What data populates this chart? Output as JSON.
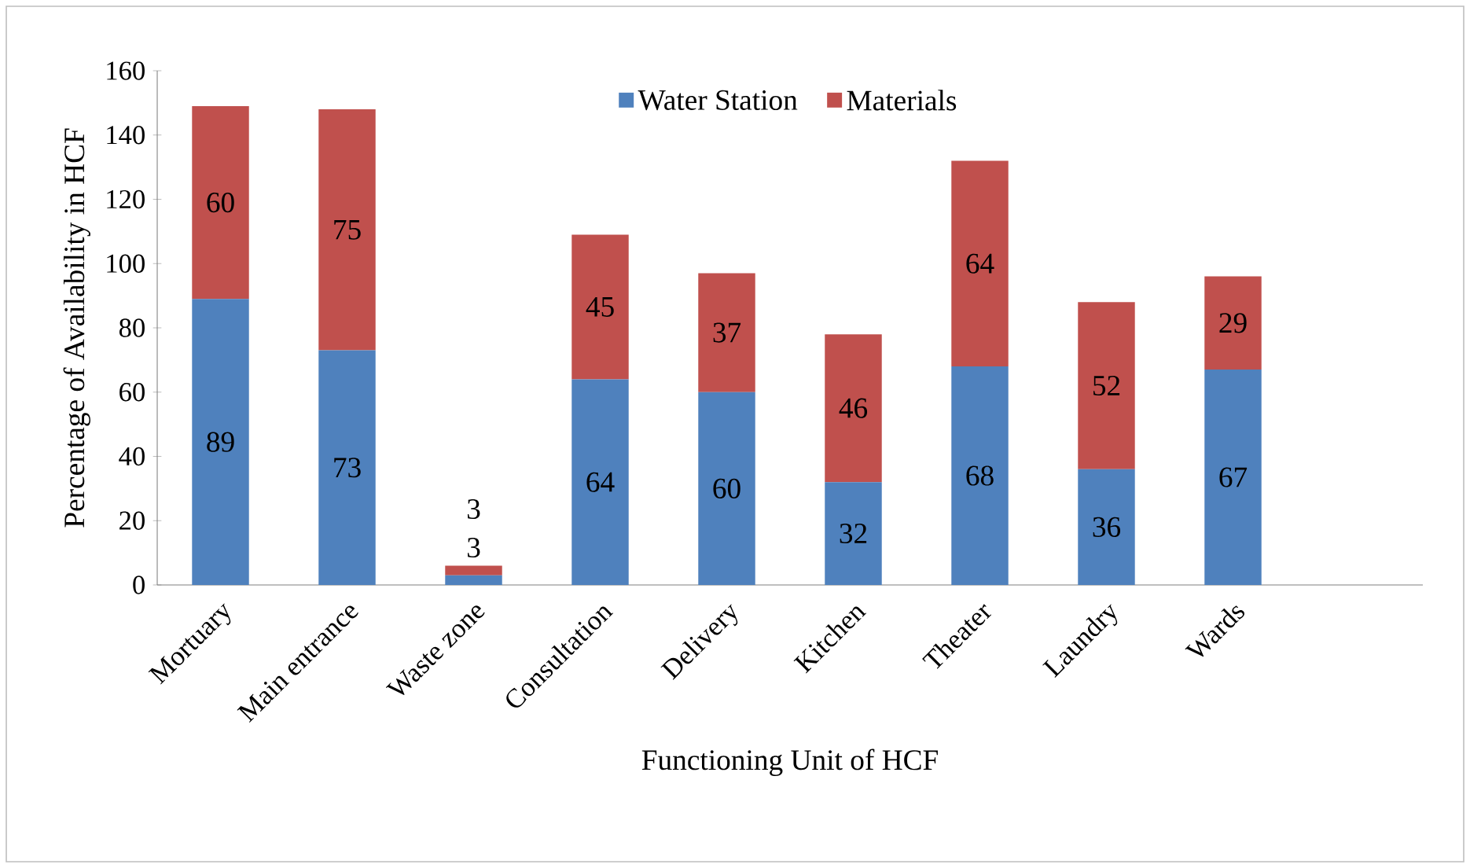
{
  "chart_data": {
    "type": "bar",
    "stacked": true,
    "xlabel": "Functioning Unit of HCF",
    "ylabel": "Percentage of Availability in HCF",
    "categories": [
      "Mortuary",
      "Main entrance",
      "Waste zone",
      "Consultation",
      "Delivery",
      "Kitchen",
      "Theater",
      "Laundry",
      "Wards",
      null
    ],
    "series": [
      {
        "name": "Water Station",
        "color": "#4f81bd",
        "values": [
          89,
          73,
          3,
          64,
          60,
          32,
          68,
          36,
          67,
          null
        ]
      },
      {
        "name": "Materials",
        "color": "#c0504d",
        "values": [
          60,
          75,
          3,
          45,
          37,
          46,
          64,
          52,
          29,
          null
        ]
      }
    ],
    "ylim": [
      0,
      160
    ],
    "yticks": [
      0,
      20,
      40,
      60,
      80,
      100,
      120,
      140,
      160
    ],
    "data_labels": true,
    "legend": "top",
    "grid": false
  }
}
